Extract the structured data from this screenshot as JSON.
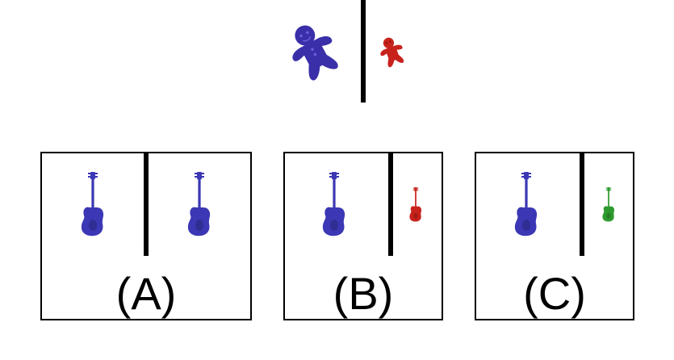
{
  "prompt": {
    "left_icon": "gingerbread-man-icon",
    "left_color": "#3a2fa8",
    "right_icon": "gingerbread-man-icon",
    "right_color": "#c8221c"
  },
  "options": [
    {
      "label": "(A)",
      "left_icon": "bass-guitar-icon",
      "left_color": "#3b37b5",
      "right_icon": "bass-guitar-icon",
      "right_color": "#3b37b5",
      "right_size": "large"
    },
    {
      "label": "(B)",
      "left_icon": "bass-guitar-icon",
      "left_color": "#3b37b5",
      "right_icon": "bass-guitar-icon",
      "right_color": "#c8221c",
      "right_size": "small"
    },
    {
      "label": "(C)",
      "left_icon": "bass-guitar-icon",
      "left_color": "#3b37b5",
      "right_icon": "bass-guitar-icon",
      "right_color": "#2e9a2e",
      "right_size": "small"
    }
  ]
}
